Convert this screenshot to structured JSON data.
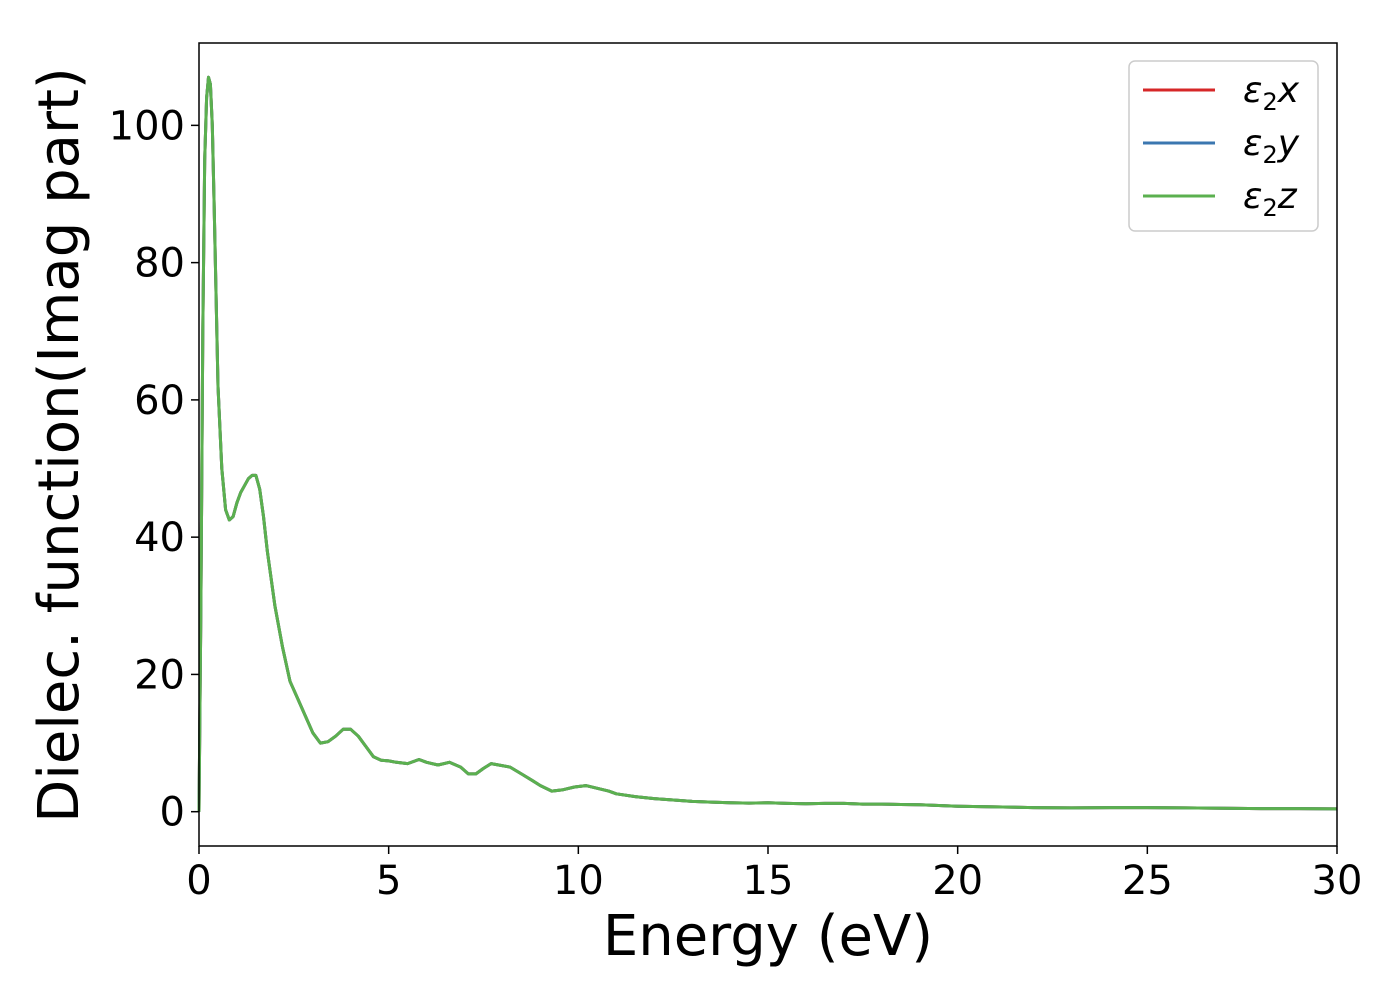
{
  "chart_data": {
    "type": "line",
    "title": "",
    "xlabel": "Energy (eV)",
    "ylabel": "Dielec. function(Imag part)",
    "xlim": [
      0,
      30
    ],
    "ylim": [
      -5,
      112
    ],
    "xticks": [
      0,
      5,
      10,
      15,
      20,
      25,
      30
    ],
    "yticks": [
      0,
      20,
      40,
      60,
      80,
      100
    ],
    "grid": false,
    "legend": "top-right",
    "x": [
      0,
      0.05,
      0.1,
      0.15,
      0.2,
      0.25,
      0.3,
      0.35,
      0.4,
      0.5,
      0.6,
      0.7,
      0.8,
      0.9,
      1.0,
      1.1,
      1.2,
      1.3,
      1.4,
      1.5,
      1.6,
      1.7,
      1.8,
      1.9,
      2.0,
      2.2,
      2.4,
      2.6,
      2.8,
      3.0,
      3.2,
      3.4,
      3.6,
      3.8,
      4.0,
      4.2,
      4.4,
      4.6,
      4.8,
      5.0,
      5.2,
      5.5,
      5.8,
      6.0,
      6.3,
      6.6,
      6.9,
      7.1,
      7.3,
      7.5,
      7.7,
      7.9,
      8.2,
      8.5,
      8.8,
      9.0,
      9.3,
      9.6,
      9.9,
      10.2,
      10.5,
      10.8,
      11.0,
      11.5,
      12.0,
      12.5,
      13.0,
      13.5,
      14.0,
      14.5,
      15.0,
      15.5,
      16.0,
      16.5,
      17.0,
      17.5,
      18.0,
      18.5,
      19.0,
      19.5,
      20.0,
      21.0,
      22.0,
      23.0,
      24.0,
      25.0,
      26.0,
      27.0,
      28.0,
      29.0,
      30.0
    ],
    "series": [
      {
        "name": "ε2x",
        "color": "#d62728",
        "values": [
          0,
          30,
          70,
          95,
          104,
          107,
          106,
          100,
          88,
          62,
          50,
          44,
          42.5,
          43,
          45,
          46.5,
          47.5,
          48.5,
          49,
          49,
          47,
          43,
          38,
          34,
          30,
          24,
          19,
          16.5,
          14,
          11.5,
          10,
          10.2,
          11,
          12,
          12,
          11,
          9.5,
          8,
          7.5,
          7.4,
          7.2,
          7.0,
          7.6,
          7.2,
          6.8,
          7.2,
          6.5,
          5.5,
          5.5,
          6.3,
          7.0,
          6.8,
          6.5,
          5.5,
          4.5,
          3.8,
          3.0,
          3.2,
          3.6,
          3.8,
          3.4,
          3.0,
          2.6,
          2.2,
          1.9,
          1.7,
          1.5,
          1.4,
          1.3,
          1.25,
          1.3,
          1.2,
          1.15,
          1.2,
          1.2,
          1.1,
          1.1,
          1.05,
          1.0,
          0.9,
          0.8,
          0.7,
          0.6,
          0.55,
          0.6,
          0.6,
          0.55,
          0.5,
          0.45,
          0.45,
          0.4
        ]
      },
      {
        "name": "ε2y",
        "color": "#3b77b0",
        "values": [
          0,
          30,
          70,
          95,
          104,
          107,
          106,
          100,
          88,
          62,
          50,
          44,
          42.5,
          43,
          45,
          46.5,
          47.5,
          48.5,
          49,
          49,
          47,
          43,
          38,
          34,
          30,
          24,
          19,
          16.5,
          14,
          11.5,
          10,
          10.2,
          11,
          12,
          12,
          11,
          9.5,
          8,
          7.5,
          7.4,
          7.2,
          7.0,
          7.6,
          7.2,
          6.8,
          7.2,
          6.5,
          5.5,
          5.5,
          6.3,
          7.0,
          6.8,
          6.5,
          5.5,
          4.5,
          3.8,
          3.0,
          3.2,
          3.6,
          3.8,
          3.4,
          3.0,
          2.6,
          2.2,
          1.9,
          1.7,
          1.5,
          1.4,
          1.3,
          1.25,
          1.3,
          1.2,
          1.15,
          1.2,
          1.2,
          1.1,
          1.1,
          1.05,
          1.0,
          0.9,
          0.8,
          0.7,
          0.6,
          0.55,
          0.6,
          0.6,
          0.55,
          0.5,
          0.45,
          0.45,
          0.4
        ]
      },
      {
        "name": "ε2z",
        "color": "#5bb04f",
        "values": [
          0,
          30,
          70,
          95,
          104,
          107,
          106,
          100,
          88,
          62,
          50,
          44,
          42.5,
          43,
          45,
          46.5,
          47.5,
          48.5,
          49,
          49,
          47,
          43,
          38,
          34,
          30,
          24,
          19,
          16.5,
          14,
          11.5,
          10,
          10.2,
          11,
          12,
          12,
          11,
          9.5,
          8,
          7.5,
          7.4,
          7.2,
          7.0,
          7.6,
          7.2,
          6.8,
          7.2,
          6.5,
          5.5,
          5.5,
          6.3,
          7.0,
          6.8,
          6.5,
          5.5,
          4.5,
          3.8,
          3.0,
          3.2,
          3.6,
          3.8,
          3.4,
          3.0,
          2.6,
          2.2,
          1.9,
          1.7,
          1.5,
          1.4,
          1.3,
          1.25,
          1.3,
          1.2,
          1.15,
          1.2,
          1.2,
          1.1,
          1.1,
          1.05,
          1.0,
          0.9,
          0.8,
          0.7,
          0.6,
          0.55,
          0.6,
          0.6,
          0.55,
          0.5,
          0.45,
          0.45,
          0.4
        ]
      }
    ]
  },
  "legend": {
    "entries": [
      {
        "symbol": "ε",
        "sub": "2",
        "axis": "x"
      },
      {
        "symbol": "ε",
        "sub": "2",
        "axis": "y"
      },
      {
        "symbol": "ε",
        "sub": "2",
        "axis": "z"
      }
    ]
  }
}
